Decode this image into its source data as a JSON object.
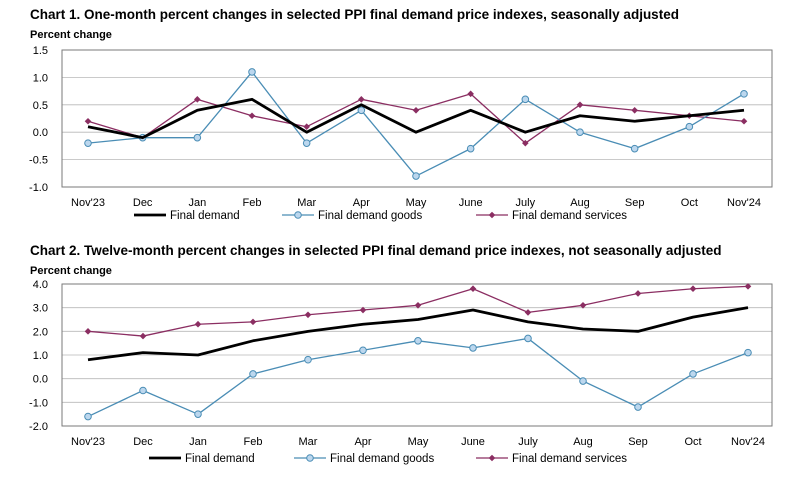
{
  "colors": {
    "final_demand": "#000000",
    "final_demand_goods": "#4a8db5",
    "goods_marker_fill": "#bcd7ee",
    "final_demand_services": "#8b2e62",
    "grid": "#b8b8b8",
    "frame": "#7a7a7a"
  },
  "chart_data": [
    {
      "type": "line",
      "title": "Chart 1. One-month percent changes in selected PPI final demand price indexes, seasonally adjusted",
      "ylabel": "Percent change",
      "xlabel": "",
      "categories": [
        "Nov'23",
        "Dec",
        "Jan",
        "Feb",
        "Mar",
        "Apr",
        "May",
        "June",
        "July",
        "Aug",
        "Sep",
        "Oct",
        "Nov'24"
      ],
      "ylim": [
        -1.0,
        1.5
      ],
      "yticks": [
        -1.0,
        -0.5,
        0.0,
        0.5,
        1.0,
        1.5
      ],
      "ytick_labels": [
        "-1.0",
        "-0.5",
        "0.0",
        "0.5",
        "1.0",
        "1.5"
      ],
      "grid": true,
      "legend": "bottom",
      "series": [
        {
          "key": "final_demand",
          "name": "Final demand",
          "values": [
            0.1,
            -0.1,
            0.4,
            0.6,
            0.0,
            0.5,
            0.0,
            0.4,
            0.0,
            0.3,
            0.2,
            0.3,
            0.4
          ]
        },
        {
          "key": "final_demand_goods",
          "name": "Final demand goods",
          "values": [
            -0.2,
            -0.1,
            -0.1,
            1.1,
            -0.2,
            0.4,
            -0.8,
            -0.3,
            0.6,
            0.0,
            -0.3,
            0.1,
            0.7
          ]
        },
        {
          "key": "final_demand_services",
          "name": "Final demand services",
          "values": [
            0.2,
            -0.1,
            0.6,
            0.3,
            0.1,
            0.6,
            0.4,
            0.7,
            -0.2,
            0.5,
            0.4,
            0.3,
            0.2
          ]
        }
      ]
    },
    {
      "type": "line",
      "title": "Chart 2. Twelve-month percent changes in selected PPI final demand price indexes, not seasonally adjusted",
      "ylabel": "Percent change",
      "xlabel": "",
      "categories": [
        "Nov'23",
        "Dec",
        "Jan",
        "Feb",
        "Mar",
        "Apr",
        "May",
        "June",
        "July",
        "Aug",
        "Sep",
        "Oct",
        "Nov'24"
      ],
      "ylim": [
        -2.0,
        4.0
      ],
      "yticks": [
        -2.0,
        -1.0,
        0.0,
        1.0,
        2.0,
        3.0,
        4.0
      ],
      "ytick_labels": [
        "-2.0",
        "-1.0",
        "0.0",
        "1.0",
        "2.0",
        "3.0",
        "4.0"
      ],
      "grid": true,
      "legend": "bottom",
      "series": [
        {
          "key": "final_demand",
          "name": "Final demand",
          "values": [
            0.8,
            1.1,
            1.0,
            1.6,
            2.0,
            2.3,
            2.5,
            2.9,
            2.4,
            2.1,
            2.0,
            2.6,
            3.0
          ]
        },
        {
          "key": "final_demand_goods",
          "name": "Final demand goods",
          "values": [
            -1.6,
            -0.5,
            -1.5,
            0.2,
            0.8,
            1.2,
            1.6,
            1.3,
            1.7,
            -0.1,
            -1.2,
            0.2,
            1.1
          ]
        },
        {
          "key": "final_demand_services",
          "name": "Final demand services",
          "values": [
            2.0,
            1.8,
            2.3,
            2.4,
            2.7,
            2.9,
            3.1,
            3.8,
            2.8,
            3.1,
            3.6,
            3.8,
            3.9
          ]
        }
      ]
    }
  ]
}
